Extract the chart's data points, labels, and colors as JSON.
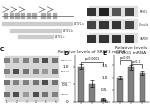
{
  "panel_D": {
    "title": "Relative levels of SRSF1 mRNA",
    "categories": [
      "siCTR\nsiCTR",
      "siSRSF1\nsiCTR",
      "siSRSF1\nsiSRSF1"
    ],
    "values": [
      1.0,
      0.52,
      0.07
    ],
    "errors": [
      0.07,
      0.09,
      0.03
    ],
    "bar_color": "#808080",
    "annotation": "p<0.0001"
  },
  "panel_E": {
    "title": "Relative levels of LIG1 mRNA",
    "categories": [
      "siCTR\nsiCTR",
      "siSRSF1\nsiCTR",
      "siSRSF1\nsiSRSF1"
    ],
    "values": [
      1.0,
      1.42,
      1.18
    ],
    "errors": [
      0.07,
      0.11,
      0.09
    ],
    "bar_color": "#808080",
    "annotation1": "p<0.05",
    "annotation2": "p<0.1"
  },
  "figure_bg": "#ffffff",
  "panel_label_size": 4.5,
  "bar_width": 0.5,
  "tick_label_size": 3.0,
  "title_size": 3.2,
  "border_color": "#999999"
}
